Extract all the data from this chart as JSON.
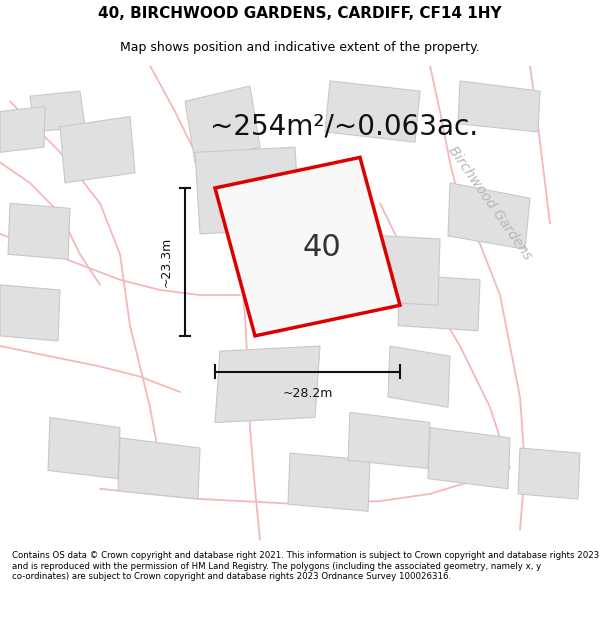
{
  "title": "40, BIRCHWOOD GARDENS, CARDIFF, CF14 1HY",
  "subtitle": "Map shows position and indicative extent of the property.",
  "area_text": "~254m²/~0.063ac.",
  "label_40": "40",
  "dim_width": "~28.2m",
  "dim_height": "~23.3m",
  "street_label": "Birchwood Gardens",
  "footer": "Contains OS data © Crown copyright and database right 2021. This information is subject to Crown copyright and database rights 2023 and is reproduced with the permission of HM Land Registry. The polygons (including the associated geometry, namely x, y co-ordinates) are subject to Crown copyright and database rights 2023 Ordnance Survey 100026316.",
  "bg_color": "#f0f0f0",
  "plot_fill": "#f8f8f8",
  "plot_edge": "#dd0000",
  "neighbor_fill": "#e0e0e0",
  "neighbor_edge": "#c8c8c8",
  "road_color": "#f5b8b8",
  "road_fill": "#fafafa",
  "dim_color": "#111111",
  "title_fontsize": 11,
  "subtitle_fontsize": 9,
  "area_fontsize": 20,
  "label_fontsize": 22,
  "footer_fontsize": 6.2,
  "street_fontsize": 10
}
